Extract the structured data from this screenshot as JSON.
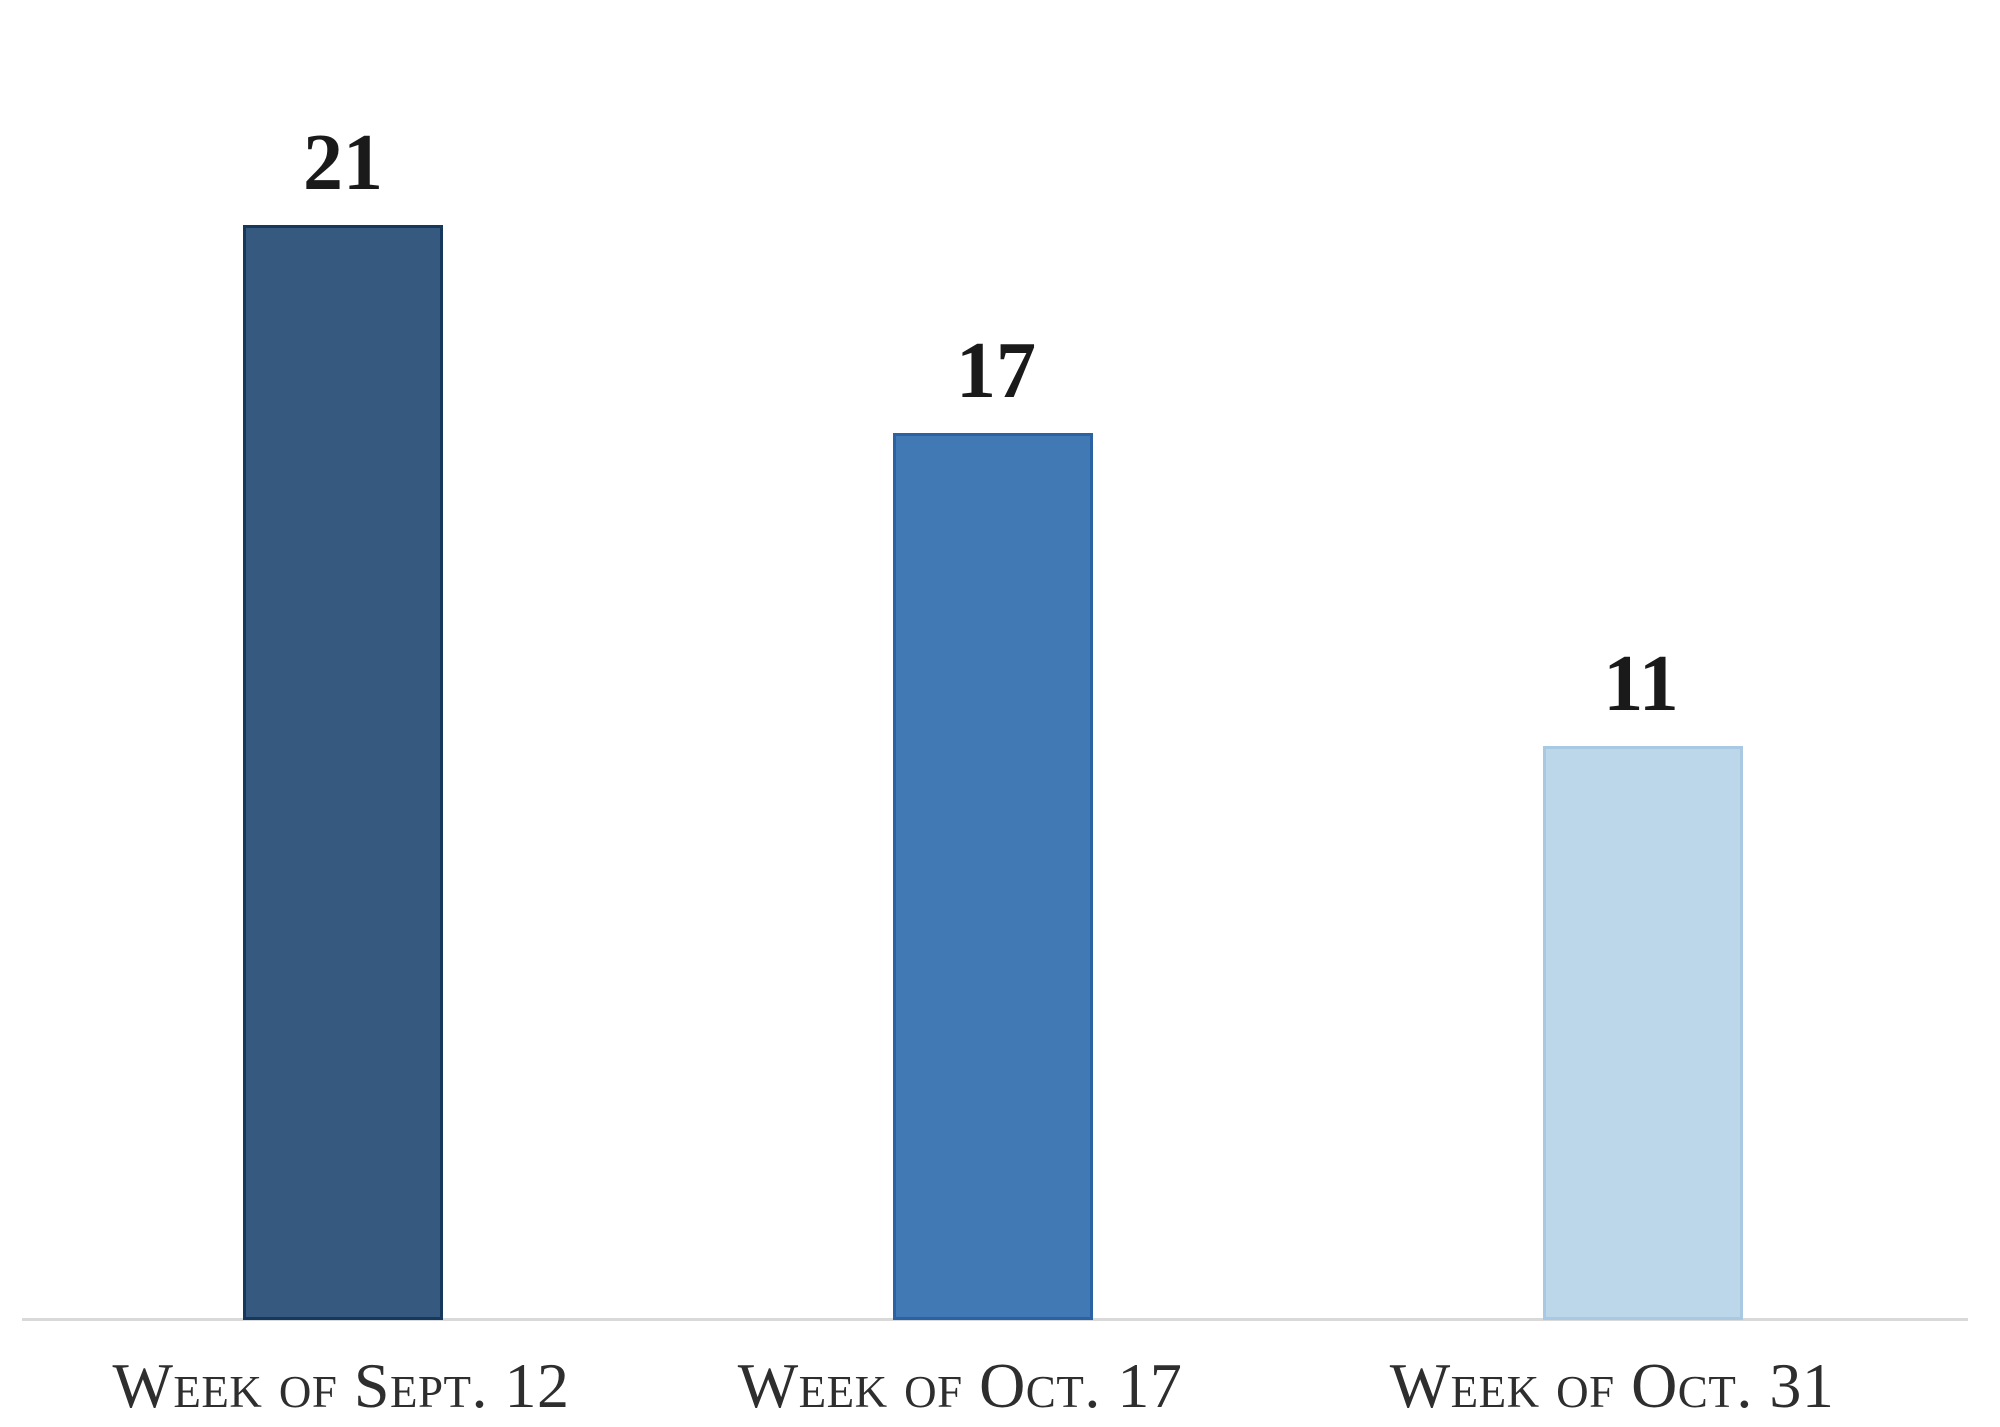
{
  "chart_data": {
    "type": "bar",
    "categories": [
      "Week of Sept. 12",
      "Week of Oct. 17",
      "Week of Oct. 31"
    ],
    "values": [
      21,
      17,
      11
    ],
    "data_labels": [
      "21",
      "17",
      "11"
    ],
    "title": "",
    "xlabel": "",
    "ylabel": "",
    "ylim": [
      0,
      21
    ],
    "grid": false,
    "legend": false,
    "y_axis_visible": false,
    "baseline_visible": true,
    "bar_fill_colors": [
      "#35597F",
      "#4179B5",
      "#BDD7EA"
    ],
    "bar_border_colors": [
      "#16385D",
      "#2A62A3",
      "#A9C9E2"
    ],
    "baseline_color": "#D9D9D9",
    "value_label_color": "#1A1A1A",
    "category_label_color": "#2E2E2E"
  }
}
